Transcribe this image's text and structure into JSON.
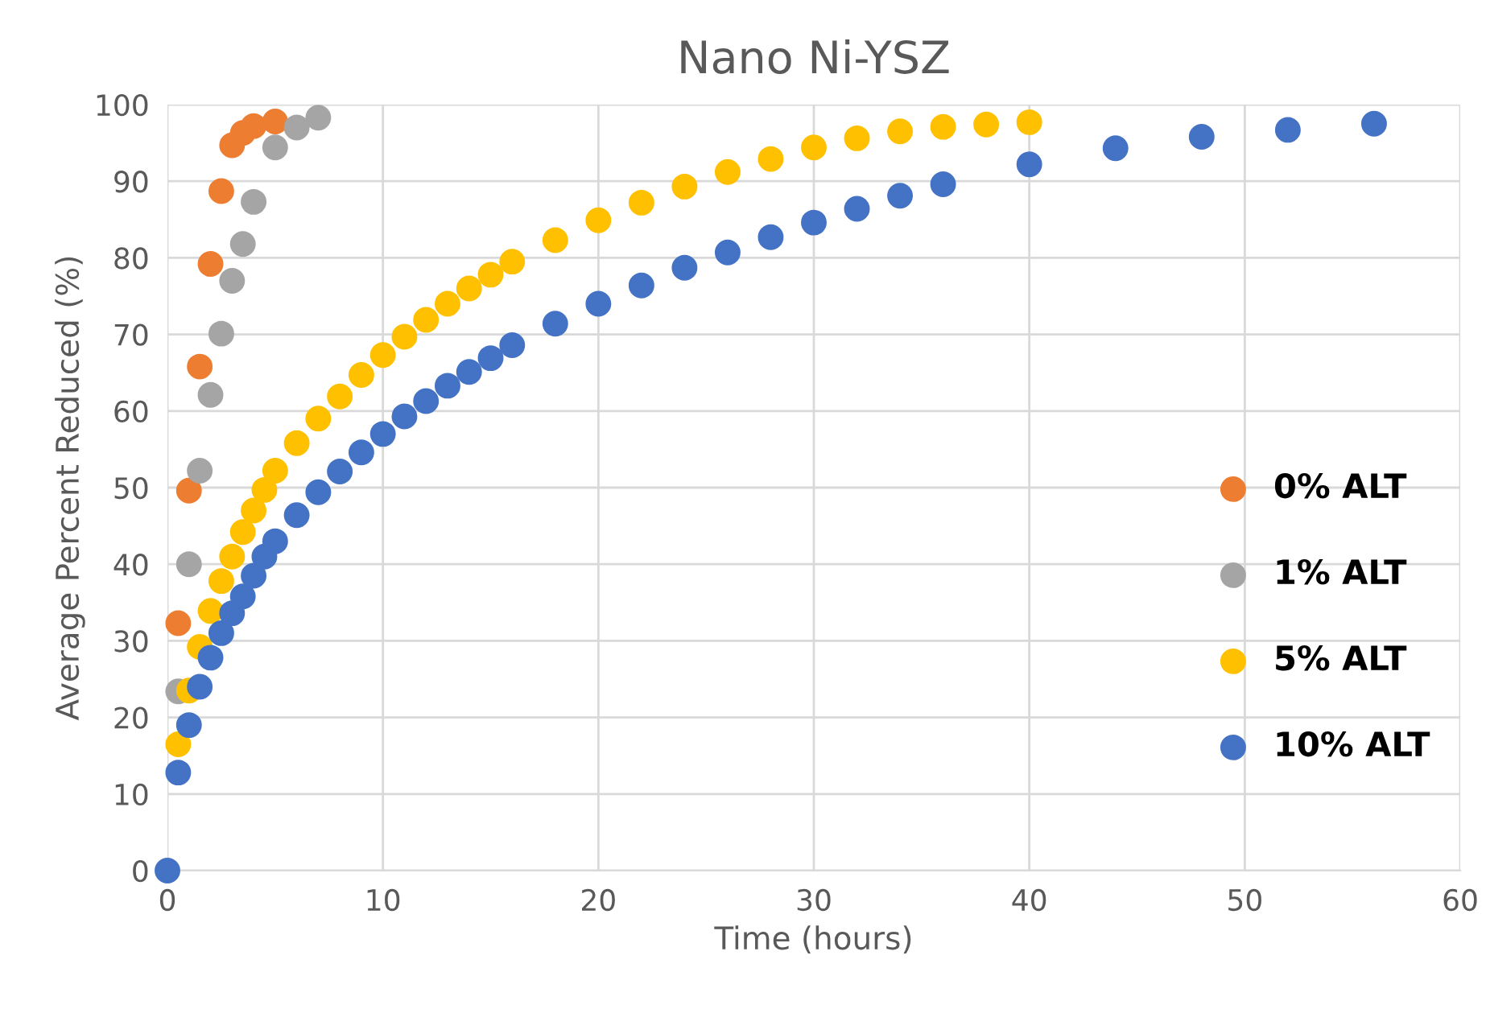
{
  "chart_data": {
    "type": "scatter",
    "title": "Nano Ni-YSZ",
    "xlabel": "Time (hours)",
    "ylabel": "Average Percent Reduced (%)",
    "xlim": [
      0,
      60
    ],
    "xticks": [
      0,
      10,
      20,
      30,
      40,
      50,
      60
    ],
    "ylim": [
      0,
      100
    ],
    "yticks": [
      0,
      10,
      20,
      30,
      40,
      50,
      60,
      70,
      80,
      90,
      100
    ],
    "grid": true,
    "legend": "right",
    "marker": "circle",
    "series": [
      {
        "name": "0% ALT",
        "color": "#ed7d31",
        "x": [
          0.5,
          1,
          1.5,
          2,
          2.5,
          3,
          3.5,
          4,
          5
        ],
        "values": [
          32.3,
          49.6,
          65.8,
          79.2,
          88.7,
          94.7,
          96.3,
          97.2,
          97.8
        ]
      },
      {
        "name": "1% ALT",
        "color": "#a5a5a5",
        "x": [
          0.5,
          1,
          1.5,
          2,
          2.5,
          3,
          3.5,
          4,
          5,
          6,
          7
        ],
        "values": [
          23.4,
          40,
          52.2,
          62.1,
          70.1,
          77,
          81.8,
          87.3,
          94.4,
          97,
          98.3
        ]
      },
      {
        "name": "5% ALT",
        "color": "#ffc000",
        "x": [
          0.5,
          1,
          1.5,
          2,
          2.5,
          3,
          3.5,
          4,
          4.5,
          5,
          6,
          7,
          8,
          9,
          10,
          11,
          12,
          13,
          14,
          15,
          16,
          18,
          20,
          22,
          24,
          26,
          28,
          30,
          32,
          34,
          36,
          38,
          40
        ],
        "values": [
          16.5,
          23.5,
          29.2,
          33.9,
          37.8,
          41,
          44.2,
          47,
          49.7,
          52.2,
          55.8,
          59,
          61.9,
          64.7,
          67.3,
          69.7,
          71.9,
          74,
          76,
          77.8,
          79.5,
          82.3,
          84.9,
          87.2,
          89.3,
          91.2,
          92.9,
          94.4,
          95.6,
          96.5,
          97.1,
          97.4,
          97.7
        ]
      },
      {
        "name": "10% ALT",
        "color": "#4472c4",
        "x": [
          0,
          0.5,
          1,
          1.5,
          2,
          2.5,
          3,
          3.5,
          4,
          4.5,
          5,
          6,
          7,
          8,
          9,
          10,
          11,
          12,
          13,
          14,
          15,
          16,
          18,
          20,
          22,
          24,
          26,
          28,
          30,
          32,
          34,
          36,
          40,
          44,
          48,
          52,
          56
        ],
        "values": [
          0,
          12.8,
          19,
          24,
          27.8,
          31,
          33.6,
          35.8,
          38.5,
          41,
          43,
          46.4,
          49.4,
          52.1,
          54.6,
          57,
          59.3,
          61.3,
          63.3,
          65.1,
          66.9,
          68.6,
          71.4,
          74,
          76.4,
          78.7,
          80.7,
          82.7,
          84.6,
          86.4,
          88.1,
          89.6,
          92.2,
          94.3,
          95.8,
          96.7,
          97.5
        ]
      }
    ]
  }
}
